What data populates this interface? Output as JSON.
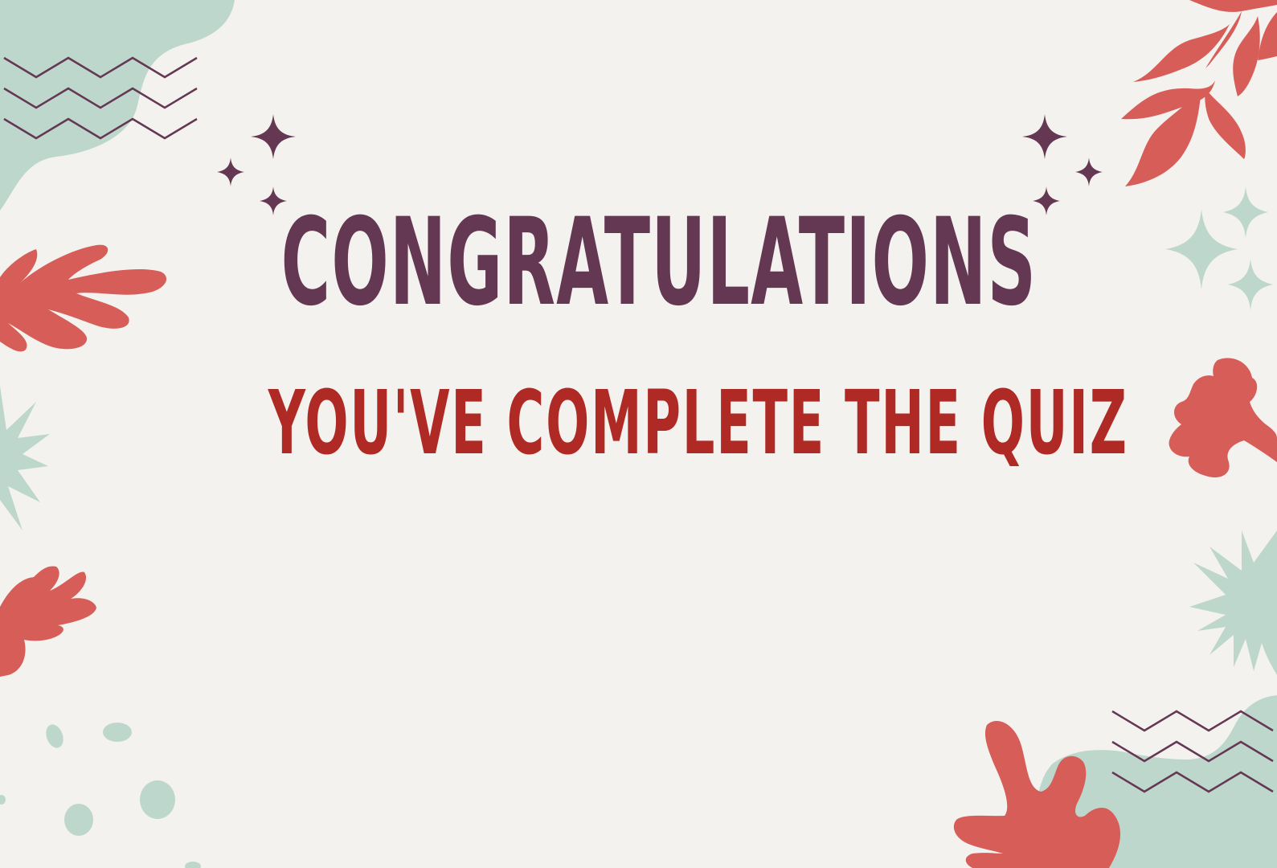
{
  "title": "CONGRATULATIONS",
  "subtitle": "YOU'VE COMPLETE THE QUIZ",
  "colors": {
    "background": "#f4f2ee",
    "title": "#643752",
    "subtitle": "#b02a25",
    "coral": "#d75d59",
    "sage": "#bed7cc",
    "plum": "#643752"
  }
}
